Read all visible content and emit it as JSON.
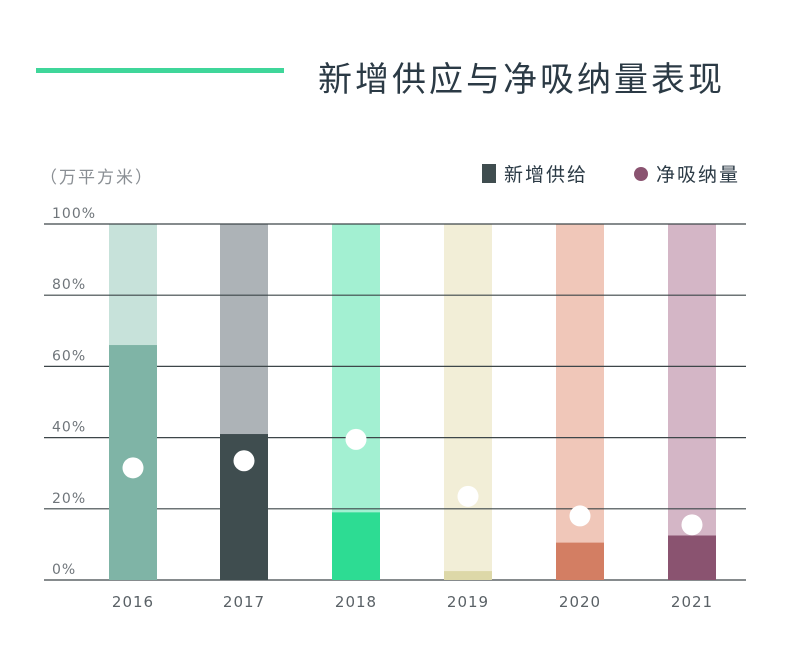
{
  "header": {
    "title": "新增供应与净吸纳量表现",
    "accent_line_color": "#3fd69a"
  },
  "unit_label": "（万平方米）",
  "legend": {
    "supply_label": "新增供给",
    "supply_color": "#3f4d4f",
    "absorb_label": "净吸纳量",
    "absorb_color": "#8a5370"
  },
  "chart_data": {
    "type": "bar",
    "title": "新增供应与净吸纳量表现",
    "ylabel": "（万平方米）",
    "ylim": [
      0,
      100
    ],
    "yticks": [
      "0%",
      "20%",
      "40%",
      "60%",
      "80%",
      "100%"
    ],
    "ytick_values": [
      0,
      20,
      40,
      60,
      80,
      100
    ],
    "grid": true,
    "legend_position": "top-right",
    "categories": [
      "2016",
      "2017",
      "2018",
      "2019",
      "2020",
      "2021"
    ],
    "series": [
      {
        "name": "新增供给",
        "marker": "bar",
        "values": [
          66,
          41,
          19,
          2.5,
          10.5,
          12.5
        ],
        "colors": [
          "#7fb4a6",
          "#3f4d4f",
          "#2ddc93",
          "#ddd8a8",
          "#d37e63",
          "#8a5370"
        ],
        "background_colors": [
          "#c7e2da",
          "#adb3b7",
          "#a3f0d2",
          "#f2eed7",
          "#f0c7b9",
          "#d4b6c6"
        ]
      },
      {
        "name": "净吸纳量",
        "marker": "circle",
        "values": [
          31.5,
          33.5,
          39.5,
          23.5,
          18,
          15.5
        ]
      }
    ]
  }
}
